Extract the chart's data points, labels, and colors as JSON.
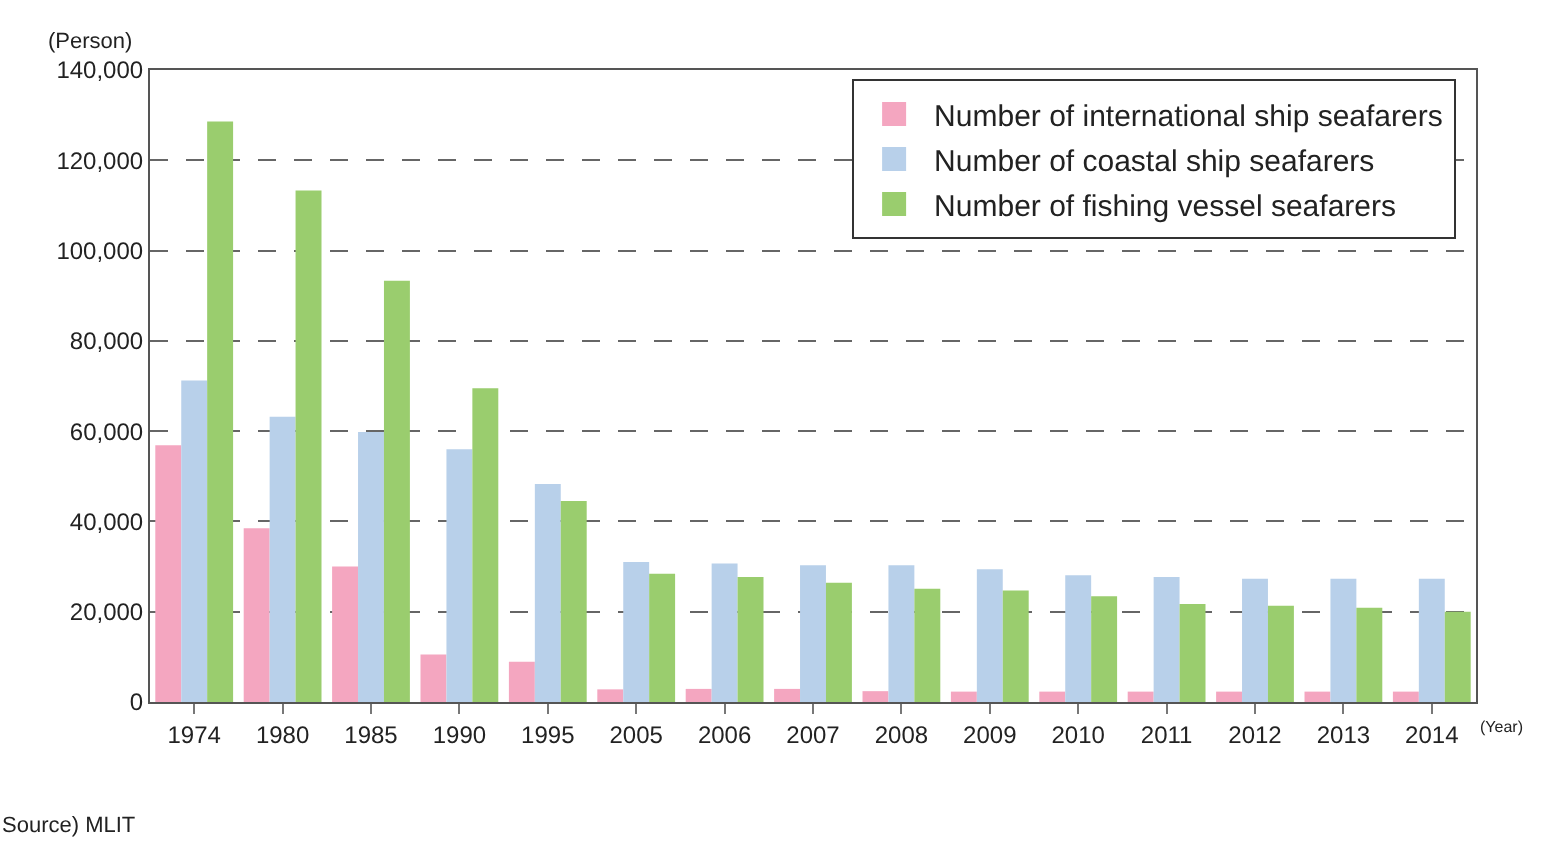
{
  "chart_data": {
    "type": "bar",
    "ylabel": "(Person)",
    "xlabel": "(Year)",
    "categories": [
      "1974",
      "1980",
      "1985",
      "1990",
      "1995",
      "2005",
      "2006",
      "2007",
      "2008",
      "2009",
      "2010",
      "2011",
      "2012",
      "2013",
      "2014"
    ],
    "series": [
      {
        "name": "Number of international ship seafarers",
        "color": "#f4a6c0",
        "values": [
          56900,
          38500,
          30000,
          10500,
          8900,
          2800,
          2900,
          2900,
          2400,
          2300,
          2300,
          2300,
          2300,
          2300,
          2300
        ]
      },
      {
        "name": "Number of coastal ship seafarers",
        "color": "#b8d0ea",
        "values": [
          71200,
          63200,
          59800,
          56000,
          48300,
          31000,
          30700,
          30300,
          30300,
          29400,
          28100,
          27700,
          27300,
          27300,
          27300
        ]
      },
      {
        "name": "Number of fishing vessel seafarers",
        "color": "#9acd6e",
        "values": [
          128600,
          113300,
          93300,
          69500,
          44500,
          28400,
          27700,
          26400,
          25100,
          24700,
          23400,
          21700,
          21300,
          20900,
          20000
        ]
      }
    ],
    "ylim": [
      0,
      140000
    ],
    "yticks": [
      {
        "value": 0,
        "label": "0"
      },
      {
        "value": 20000,
        "label": "20,000"
      },
      {
        "value": 40000,
        "label": "40,000"
      },
      {
        "value": 60000,
        "label": "60,000"
      },
      {
        "value": 80000,
        "label": "80,000"
      },
      {
        "value": 100000,
        "label": "100,000"
      },
      {
        "value": 120000,
        "label": "120,000"
      },
      {
        "value": 140000,
        "label": "140,000"
      }
    ],
    "grid": "y",
    "legend": "top right",
    "annotations": [
      "Source) MLIT"
    ]
  }
}
